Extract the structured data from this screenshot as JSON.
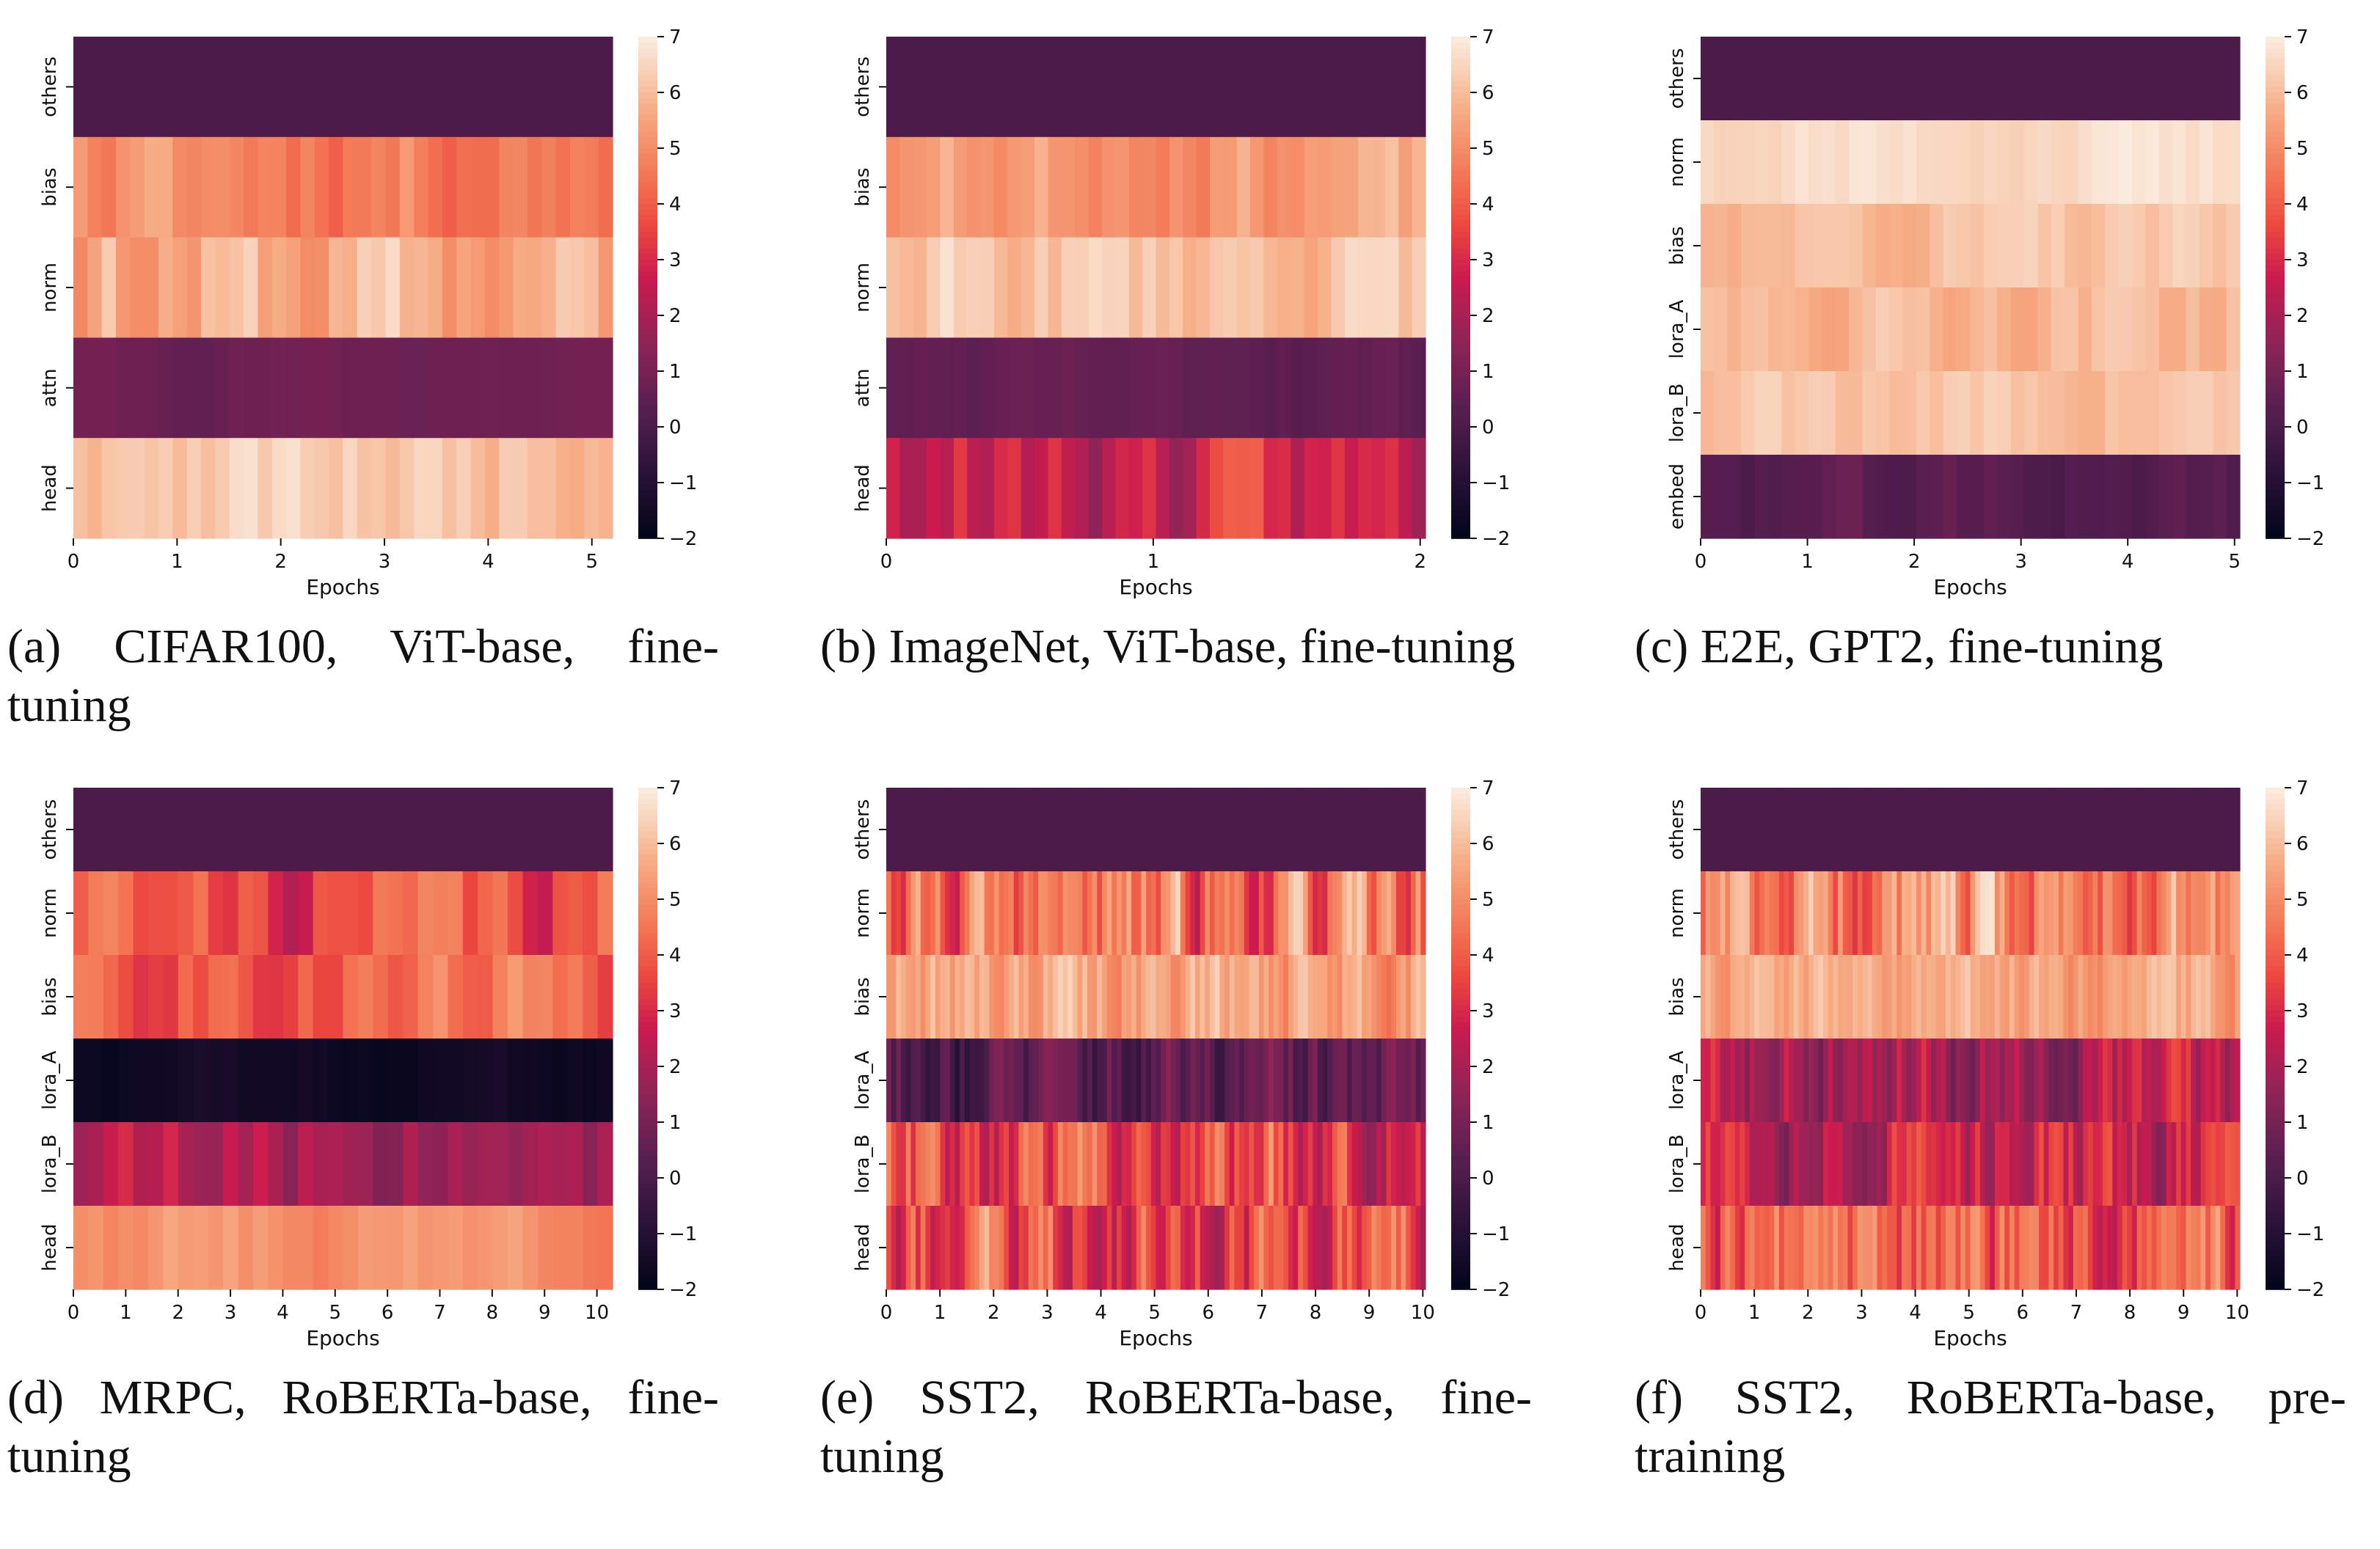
{
  "figure": {
    "colormap": "rocket",
    "colorbar_ticks": [
      "7",
      "6",
      "5",
      "4",
      "3",
      "2",
      "1",
      "0",
      "−1",
      "−2"
    ],
    "colorbar_range": [
      -2,
      7
    ]
  },
  "chart_data": [
    {
      "type": "heatmap",
      "caption": "(a) CIFAR100, ViT-base, fine-tuning",
      "xlabel": "Epochs",
      "x_ticks": [
        "0",
        "1",
        "2",
        "3",
        "4",
        "5"
      ],
      "x_range": [
        0,
        5.2
      ],
      "rows": [
        "others",
        "bias",
        "norm",
        "attn",
        "head"
      ],
      "row_means": [
        0.0,
        4.9,
        5.6,
        0.8,
        6.3
      ],
      "row_var": [
        0.0,
        0.6,
        0.8,
        0.15,
        0.4
      ],
      "cols": 38,
      "seed": 11
    },
    {
      "type": "heatmap",
      "caption": "(b) ImageNet, ViT-base, fine-tuning",
      "xlabel": "Epochs",
      "x_ticks": [
        "0",
        "1",
        "2"
      ],
      "x_range": [
        0,
        2.02
      ],
      "rows": [
        "others",
        "bias",
        "norm",
        "attn",
        "head"
      ],
      "row_means": [
        0.0,
        5.4,
        6.2,
        0.5,
        2.6
      ],
      "row_var": [
        0.0,
        0.5,
        0.5,
        0.15,
        0.9
      ],
      "cols": 40,
      "seed": 23
    },
    {
      "type": "heatmap",
      "caption": "(c) E2E, GPT2, fine-tuning",
      "xlabel": "Epochs",
      "x_ticks": [
        "0",
        "1",
        "2",
        "3",
        "4",
        "5"
      ],
      "x_range": [
        0,
        5.05
      ],
      "rows": [
        "others",
        "norm",
        "bias",
        "lora_A",
        "lora_B",
        "embed"
      ],
      "row_means": [
        0.0,
        6.7,
        6.1,
        6.0,
        6.2,
        0.2
      ],
      "row_var": [
        0.0,
        0.2,
        0.3,
        0.35,
        0.3,
        0.3
      ],
      "cols": 40,
      "seed": 37
    },
    {
      "type": "heatmap",
      "caption": "(d) MRPC, RoBERTa-base, fine-tuning",
      "xlabel": "Epochs",
      "x_ticks": [
        "0",
        "1",
        "2",
        "3",
        "4",
        "5",
        "6",
        "7",
        "8",
        "9",
        "10"
      ],
      "x_range": [
        0,
        10.3
      ],
      "rows": [
        "others",
        "norm",
        "bias",
        "lora_A",
        "lora_B",
        "head"
      ],
      "row_means": [
        0.0,
        3.6,
        4.3,
        -1.6,
        2.1,
        5.2
      ],
      "row_var": [
        0.0,
        1.0,
        0.8,
        0.15,
        0.8,
        0.4
      ],
      "cols": 36,
      "seed": 41
    },
    {
      "type": "heatmap",
      "caption": "(e) SST2, RoBERTa-base, fine-tuning",
      "xlabel": "Epochs",
      "x_ticks": [
        "0",
        "1",
        "2",
        "3",
        "4",
        "5",
        "6",
        "7",
        "8",
        "9",
        "10"
      ],
      "x_range": [
        0,
        10.05
      ],
      "rows": [
        "others",
        "norm",
        "bias",
        "lora_A",
        "lora_B",
        "head"
      ],
      "row_means": [
        0.0,
        4.3,
        5.6,
        0.2,
        3.8,
        3.6
      ],
      "row_var": [
        0.0,
        1.3,
        0.7,
        0.9,
        1.3,
        1.3
      ],
      "cols": 110,
      "seed": 53
    },
    {
      "type": "heatmap",
      "caption": "(f) SST2, RoBERTa-base, pre-training",
      "xlabel": "Epochs",
      "x_ticks": [
        "0",
        "1",
        "2",
        "3",
        "4",
        "5",
        "6",
        "7",
        "8",
        "9",
        "10"
      ],
      "x_range": [
        0,
        10.05
      ],
      "rows": [
        "others",
        "norm",
        "bias",
        "lora_A",
        "lora_B",
        "head"
      ],
      "row_means": [
        0.0,
        4.9,
        5.6,
        2.3,
        2.8,
        4.1
      ],
      "row_var": [
        0.0,
        1.2,
        0.5,
        1.0,
        1.0,
        1.1
      ],
      "cols": 110,
      "seed": 67
    }
  ]
}
